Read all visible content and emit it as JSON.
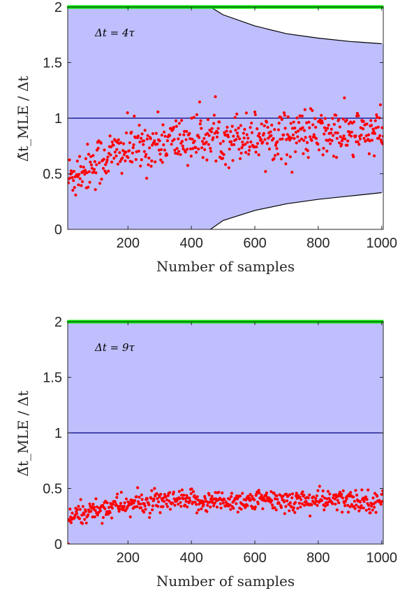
{
  "chart_data": [
    {
      "type": "scatter",
      "annotation": "Δt = 4τ",
      "xlabel": "Number of samples",
      "ylabel": "Δ̃t_MLE / Δt",
      "xlim": [
        10,
        1005
      ],
      "ylim": [
        0,
        2
      ],
      "xticks": [
        200,
        400,
        600,
        800,
        1000
      ],
      "yticks": [
        0,
        0.5,
        1,
        1.5,
        2
      ],
      "reference_line": 1,
      "green_marker_level": 2,
      "band_upper": {
        "x": [
          460,
          500,
          600,
          700,
          800,
          900,
          1000
        ],
        "y": [
          2.0,
          1.93,
          1.83,
          1.76,
          1.72,
          1.69,
          1.67
        ]
      },
      "band_lower": {
        "x": [
          460,
          500,
          600,
          700,
          800,
          900,
          1000
        ],
        "y": [
          0.0,
          0.08,
          0.17,
          0.23,
          0.27,
          0.3,
          0.33
        ]
      },
      "trend": {
        "start": 0.45,
        "plateau": 0.86,
        "rate": 180,
        "spread": 0.11
      },
      "colors": {
        "band": "#bfbffe",
        "points": "#ff0000",
        "green": "#00e600",
        "line": "#00007f"
      }
    },
    {
      "type": "scatter",
      "annotation": "Δt = 9τ",
      "xlabel": "Number of samples",
      "ylabel": "Δ̃t_MLE / Δt",
      "xlim": [
        10,
        1005
      ],
      "ylim": [
        0,
        2
      ],
      "xticks": [
        200,
        400,
        600,
        800,
        1000
      ],
      "yticks": [
        0,
        0.5,
        1,
        1.5,
        2
      ],
      "reference_line": 1,
      "green_marker_level": 2,
      "band_upper": null,
      "band_lower": null,
      "trend": {
        "start": 0.22,
        "plateau": 0.39,
        "rate": 120,
        "spread": 0.05
      },
      "colors": {
        "band": "#bfbffe",
        "points": "#ff0000",
        "green": "#00e600",
        "line": "#00007f"
      }
    }
  ]
}
